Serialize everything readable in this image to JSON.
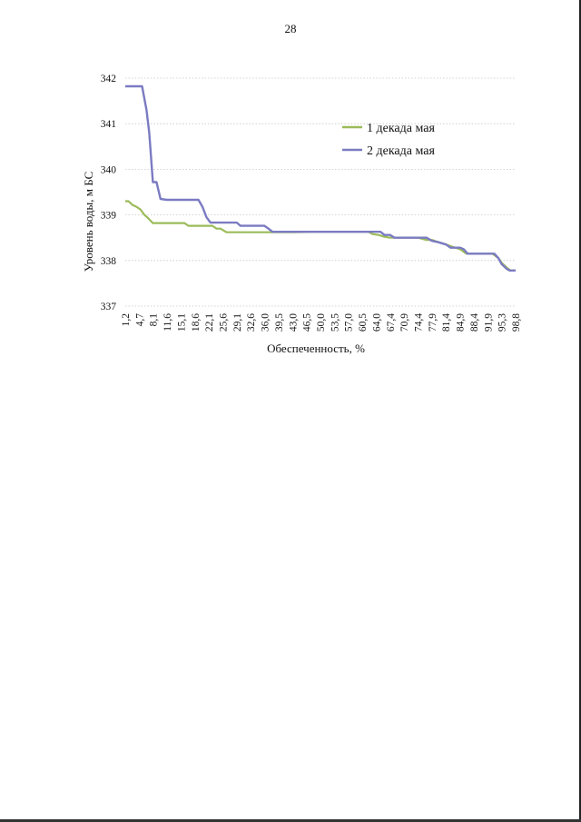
{
  "page": {
    "number": "28"
  },
  "chart_data": {
    "type": "line",
    "ylabel": "Уровень воды, м БС",
    "xlabel": "Обеспеченность, %",
    "ylim": [
      337,
      342
    ],
    "yticks": [
      337,
      338,
      339,
      340,
      341,
      342
    ],
    "grid": "horizontal dotted",
    "legend": "top-right",
    "x_tick_labels": [
      "1,2",
      "4,7",
      "8,1",
      "11,6",
      "15,1",
      "18,6",
      "22,1",
      "25,6",
      "29,1",
      "32,6",
      "36,0",
      "39,5",
      "43,0",
      "46,5",
      "50,0",
      "53,5",
      "57,0",
      "60,5",
      "64,0",
      "67,4",
      "70,9",
      "74,4",
      "77,9",
      "81,4",
      "84,9",
      "88,4",
      "91,9",
      "95,3",
      "98,8"
    ],
    "series": [
      {
        "name": "1 декада мая",
        "color": "#9bbb59",
        "points": [
          [
            1.2,
            339.3
          ],
          [
            2.0,
            339.3
          ],
          [
            3.0,
            339.22
          ],
          [
            4.0,
            339.18
          ],
          [
            5.0,
            339.12
          ],
          [
            6.0,
            339.0
          ],
          [
            7.0,
            338.92
          ],
          [
            8.1,
            338.82
          ],
          [
            10.0,
            338.82
          ],
          [
            12.0,
            338.82
          ],
          [
            14.0,
            338.82
          ],
          [
            16.0,
            338.82
          ],
          [
            17.0,
            338.76
          ],
          [
            18.6,
            338.76
          ],
          [
            20.0,
            338.76
          ],
          [
            22.1,
            338.76
          ],
          [
            23.0,
            338.76
          ],
          [
            24.0,
            338.7
          ],
          [
            25.0,
            338.7
          ],
          [
            26.5,
            338.62
          ],
          [
            29.1,
            338.62
          ],
          [
            32.6,
            338.62
          ],
          [
            36.0,
            338.62
          ],
          [
            39.5,
            338.62
          ],
          [
            43.0,
            338.62
          ],
          [
            50.0,
            338.63
          ],
          [
            57.0,
            338.63
          ],
          [
            62.0,
            338.63
          ],
          [
            63.0,
            338.58
          ],
          [
            64.5,
            338.56
          ],
          [
            66.0,
            338.52
          ],
          [
            67.4,
            338.5
          ],
          [
            70.9,
            338.5
          ],
          [
            74.4,
            338.5
          ],
          [
            76.5,
            338.45
          ],
          [
            77.9,
            338.45
          ],
          [
            79.5,
            338.4
          ],
          [
            81.4,
            338.35
          ],
          [
            83.0,
            338.3
          ],
          [
            84.9,
            338.25
          ],
          [
            86.5,
            338.15
          ],
          [
            88.4,
            338.15
          ],
          [
            91.9,
            338.15
          ],
          [
            93.0,
            338.15
          ],
          [
            94.5,
            338.05
          ],
          [
            95.3,
            337.95
          ],
          [
            96.5,
            337.85
          ],
          [
            97.5,
            337.78
          ],
          [
            98.8,
            337.78
          ]
        ]
      },
      {
        "name": "2 декада мая",
        "color": "#7b7bc2",
        "points": [
          [
            1.2,
            341.82
          ],
          [
            3.0,
            341.82
          ],
          [
            4.7,
            341.82
          ],
          [
            5.4,
            341.82
          ],
          [
            6.5,
            341.3
          ],
          [
            7.2,
            340.8
          ],
          [
            8.1,
            339.72
          ],
          [
            9.0,
            339.72
          ],
          [
            10.0,
            339.35
          ],
          [
            11.6,
            339.33
          ],
          [
            15.1,
            339.33
          ],
          [
            18.6,
            339.33
          ],
          [
            19.5,
            339.33
          ],
          [
            20.5,
            339.18
          ],
          [
            21.5,
            338.95
          ],
          [
            22.5,
            338.83
          ],
          [
            25.6,
            338.83
          ],
          [
            29.1,
            338.83
          ],
          [
            30.0,
            338.76
          ],
          [
            32.6,
            338.76
          ],
          [
            36.0,
            338.76
          ],
          [
            37.0,
            338.7
          ],
          [
            38.0,
            338.63
          ],
          [
            39.5,
            338.63
          ],
          [
            43.0,
            338.63
          ],
          [
            50.0,
            338.63
          ],
          [
            57.0,
            338.63
          ],
          [
            64.0,
            338.63
          ],
          [
            65.0,
            338.63
          ],
          [
            66.0,
            338.56
          ],
          [
            67.4,
            338.56
          ],
          [
            68.5,
            338.5
          ],
          [
            70.9,
            338.5
          ],
          [
            74.4,
            338.5
          ],
          [
            76.5,
            338.5
          ],
          [
            77.9,
            338.43
          ],
          [
            79.5,
            338.4
          ],
          [
            81.4,
            338.35
          ],
          [
            82.5,
            338.28
          ],
          [
            84.9,
            338.28
          ],
          [
            85.8,
            338.25
          ],
          [
            86.8,
            338.15
          ],
          [
            88.4,
            338.15
          ],
          [
            91.9,
            338.15
          ],
          [
            93.5,
            338.15
          ],
          [
            94.5,
            338.05
          ],
          [
            95.3,
            337.92
          ],
          [
            96.5,
            337.82
          ],
          [
            97.3,
            337.78
          ],
          [
            98.8,
            337.78
          ]
        ]
      }
    ]
  }
}
